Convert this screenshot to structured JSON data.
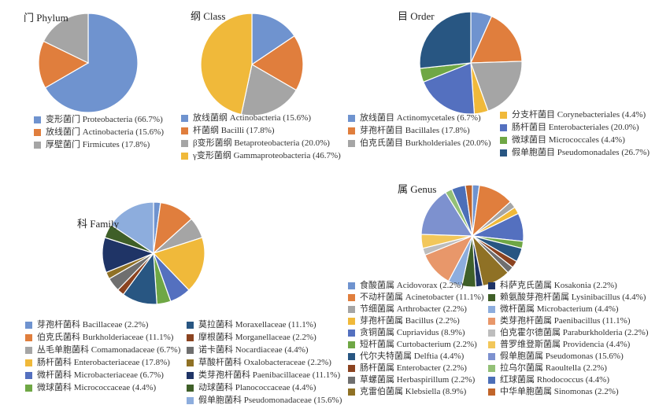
{
  "chart_data": [
    {
      "type": "pie",
      "title": "门 Phylum",
      "labels": [
        "变形菌门 Proteobacteria (66.7%)",
        "放线菌门 Actinobacteria (15.6%)",
        "厚壁菌门 Firmicutes (17.8%)"
      ],
      "values": [
        66.7,
        15.6,
        17.8
      ],
      "colors": [
        "#6F93CF",
        "#E07E3D",
        "#A5A5A5"
      ]
    },
    {
      "type": "pie",
      "title": "纲 Class",
      "labels": [
        "放线菌纲 Actinobacteria (15.6%)",
        "杆菌纲 Bacilli (17.8%)",
        "β变形菌纲 Betaproteobacteria (20.0%)",
        "γ变形菌纲 Gammaproteobacteria (46.7%)"
      ],
      "values": [
        15.6,
        17.8,
        20.0,
        46.7
      ],
      "colors": [
        "#6F93CF",
        "#E07E3D",
        "#A5A5A5",
        "#F0B93A"
      ]
    },
    {
      "type": "pie",
      "title": "目 Order",
      "labels": [
        "放线菌目 Actinomycetales (6.7%)",
        "芽孢杆菌目 Bacillales (17.8%)",
        "伯克氏菌目 Burkholderiales (20.0%)",
        "分支杆菌目 Corynebacteriales (4.4%)",
        "肠杆菌目 Enterobacteriales (20.0%)",
        "微球菌目 Micrococcales (4.4%)",
        "假单胞菌目 Pseudomonadales (26.7%)"
      ],
      "values": [
        6.7,
        17.8,
        20.0,
        4.4,
        20.0,
        4.4,
        26.7
      ],
      "colors": [
        "#6F93CF",
        "#E07E3D",
        "#A5A5A5",
        "#F0B93A",
        "#5470BF",
        "#6FA745",
        "#285682"
      ]
    },
    {
      "type": "pie",
      "title": "科 Family",
      "labels": [
        "芽孢杆菌科 Bacillaceae (2.2%)",
        "伯克氏菌科 Burkholderiaceae (11.1%)",
        "丛毛单胞菌科 Comamonadaceae (6.7%)",
        "肠杆菌科 Enterobacteriaceae (17.8%)",
        "微杆菌科 Microbacteriaceae (6.7%)",
        "微球菌科 Micrococcaceae (4.4%)",
        "莫拉菌科 Moraxellaceae (11.1%)",
        "摩根菌科 Morganellaceae (2.2%)",
        "诺卡菌科 Nocardiaceae (4.4%)",
        "草酸杆菌科 Oxalobacteraceae (2.2%)",
        "类芽孢杆菌科 Paenibacillaceae (11.1%)",
        "动球菌科 Planococcaceae (4.4%)",
        "假单胞菌科 Pseudomonadaceae (15.6%)"
      ],
      "values": [
        2.2,
        11.1,
        6.7,
        17.8,
        6.7,
        4.4,
        11.1,
        2.2,
        4.4,
        2.2,
        11.1,
        4.4,
        15.6
      ],
      "colors": [
        "#6F93CF",
        "#E07E3D",
        "#A5A5A5",
        "#F0B93A",
        "#5470BF",
        "#6FA745",
        "#285682",
        "#8B4320",
        "#6F6F6F",
        "#8F7125",
        "#1F3466",
        "#3F5F28",
        "#8DADDD"
      ]
    },
    {
      "type": "pie",
      "title": "属 Genus",
      "labels": [
        "食酸菌属 Acidovorax (2.2%)",
        "不动杆菌属 Acinetobacter (11.1%)",
        "节细菌属 Arthrobacter (2.2%)",
        "芽孢杆菌属 Bacillus (2.2%)",
        "贪铜菌属 Cupriavidus (8.9%)",
        "短杆菌属 Curtobacterium (2.2%)",
        "代尔夫特菌属 Delftia (4.4%)",
        "肠杆菌属 Enterobacter (2.2%)",
        "草螺菌属 Herbaspirillum (2.2%)",
        "克雷伯菌属 Klebsiella (8.9%)",
        "科萨克氏菌属 Kosakonia (2.2%)",
        "赖氨酸芽孢杆菌属 Lysinibacillus (4.4%)",
        "微杆菌属 Microbacterium (4.4%)",
        "类芽孢杆菌属 Paenibacillus (11.1%)",
        "伯克霍尔德菌属 Paraburkholderia (2.2%)",
        "普罗维登斯菌属 Providencia (4.4%)",
        "假单胞菌属 Pseudomonas (15.6%)",
        "拉乌尔菌属 Raoultella (2.2%)",
        "红球菌属 Rhodococcus (4.4%)",
        "中华单胞菌属 Sinomonas (2.2%)"
      ],
      "values": [
        2.2,
        11.1,
        2.2,
        2.2,
        8.9,
        2.2,
        4.4,
        2.2,
        2.2,
        8.9,
        2.2,
        4.4,
        4.4,
        11.1,
        2.2,
        4.4,
        15.6,
        2.2,
        4.4,
        2.2
      ],
      "colors": [
        "#6F93CF",
        "#E07E3D",
        "#A5A5A5",
        "#F0B93A",
        "#5470BF",
        "#6FA745",
        "#285682",
        "#8B4320",
        "#6F6F6F",
        "#8F7125",
        "#1F3466",
        "#3F5F28",
        "#8DADDD",
        "#E8976A",
        "#BDBDBD",
        "#F2C75A",
        "#7D91CF",
        "#93C077",
        "#4C6FB8",
        "#C1652A"
      ]
    }
  ]
}
